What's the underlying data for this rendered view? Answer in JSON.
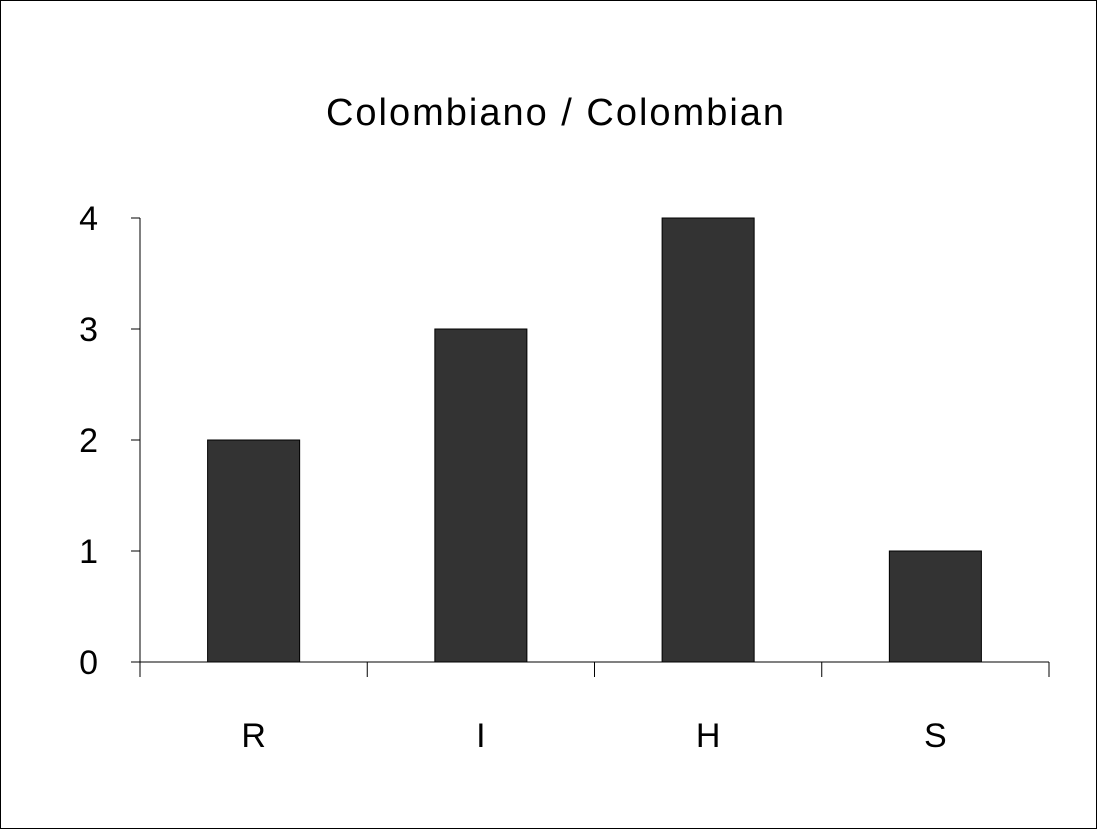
{
  "chart_data": {
    "type": "bar",
    "title": "Colombiano / Colombian",
    "categories": [
      "R",
      "I",
      "H",
      "S"
    ],
    "values": [
      2,
      3,
      4,
      1
    ],
    "ylim": [
      0,
      4
    ],
    "yticks": [
      "0",
      "1",
      "2",
      "3",
      "4"
    ],
    "xlabel": "",
    "ylabel": "",
    "grid": false,
    "legend": "none",
    "bar_color": "#333333"
  }
}
